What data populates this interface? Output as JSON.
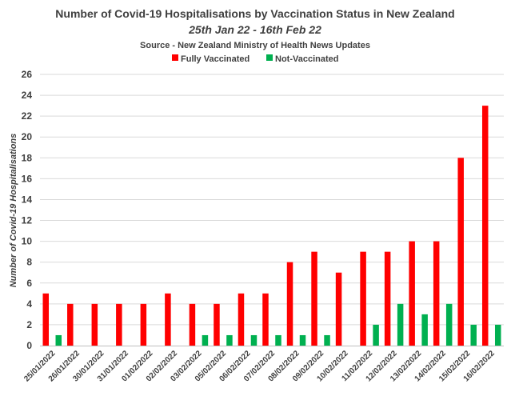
{
  "chart_data": {
    "type": "bar",
    "title": "Number of Covid-19 Hospitalisations by Vaccination Status in New Zealand",
    "subtitle": "25th Jan 22 - 16th Feb 22",
    "source": "Source - New Zealand Ministry of Health News Updates",
    "ylabel": "Number of Covid-19 Hospitalisations",
    "xlabel": "",
    "ylim": [
      0,
      26
    ],
    "yticks": [
      0,
      2,
      4,
      6,
      8,
      10,
      12,
      14,
      16,
      18,
      20,
      22,
      24,
      26
    ],
    "grid": true,
    "legend_position": "top",
    "categories": [
      "25/01/2022",
      "26/01/2022",
      "30/01/2022",
      "31/01/2022",
      "01/02/2022",
      "02/02/2022",
      "03/02/2022",
      "05/02/2022",
      "06/02/2022",
      "07/02/2022",
      "08/02/2022",
      "09/02/2022",
      "10/02/2022",
      "11/02/2022",
      "12/02/2022",
      "13/02/2022",
      "14/02/2022",
      "15/02/2022",
      "16/02/2022"
    ],
    "series": [
      {
        "name": "Fully Vaccinated",
        "color": "#ff0000",
        "values": [
          5,
          4,
          4,
          4,
          4,
          5,
          4,
          4,
          5,
          5,
          8,
          9,
          7,
          9,
          9,
          10,
          10,
          18,
          23
        ]
      },
      {
        "name": "Not-Vaccinated",
        "color": "#00b050",
        "values": [
          1,
          0,
          0,
          0,
          0,
          0,
          1,
          1,
          1,
          1,
          1,
          1,
          0,
          2,
          4,
          3,
          4,
          2,
          2
        ]
      }
    ]
  }
}
